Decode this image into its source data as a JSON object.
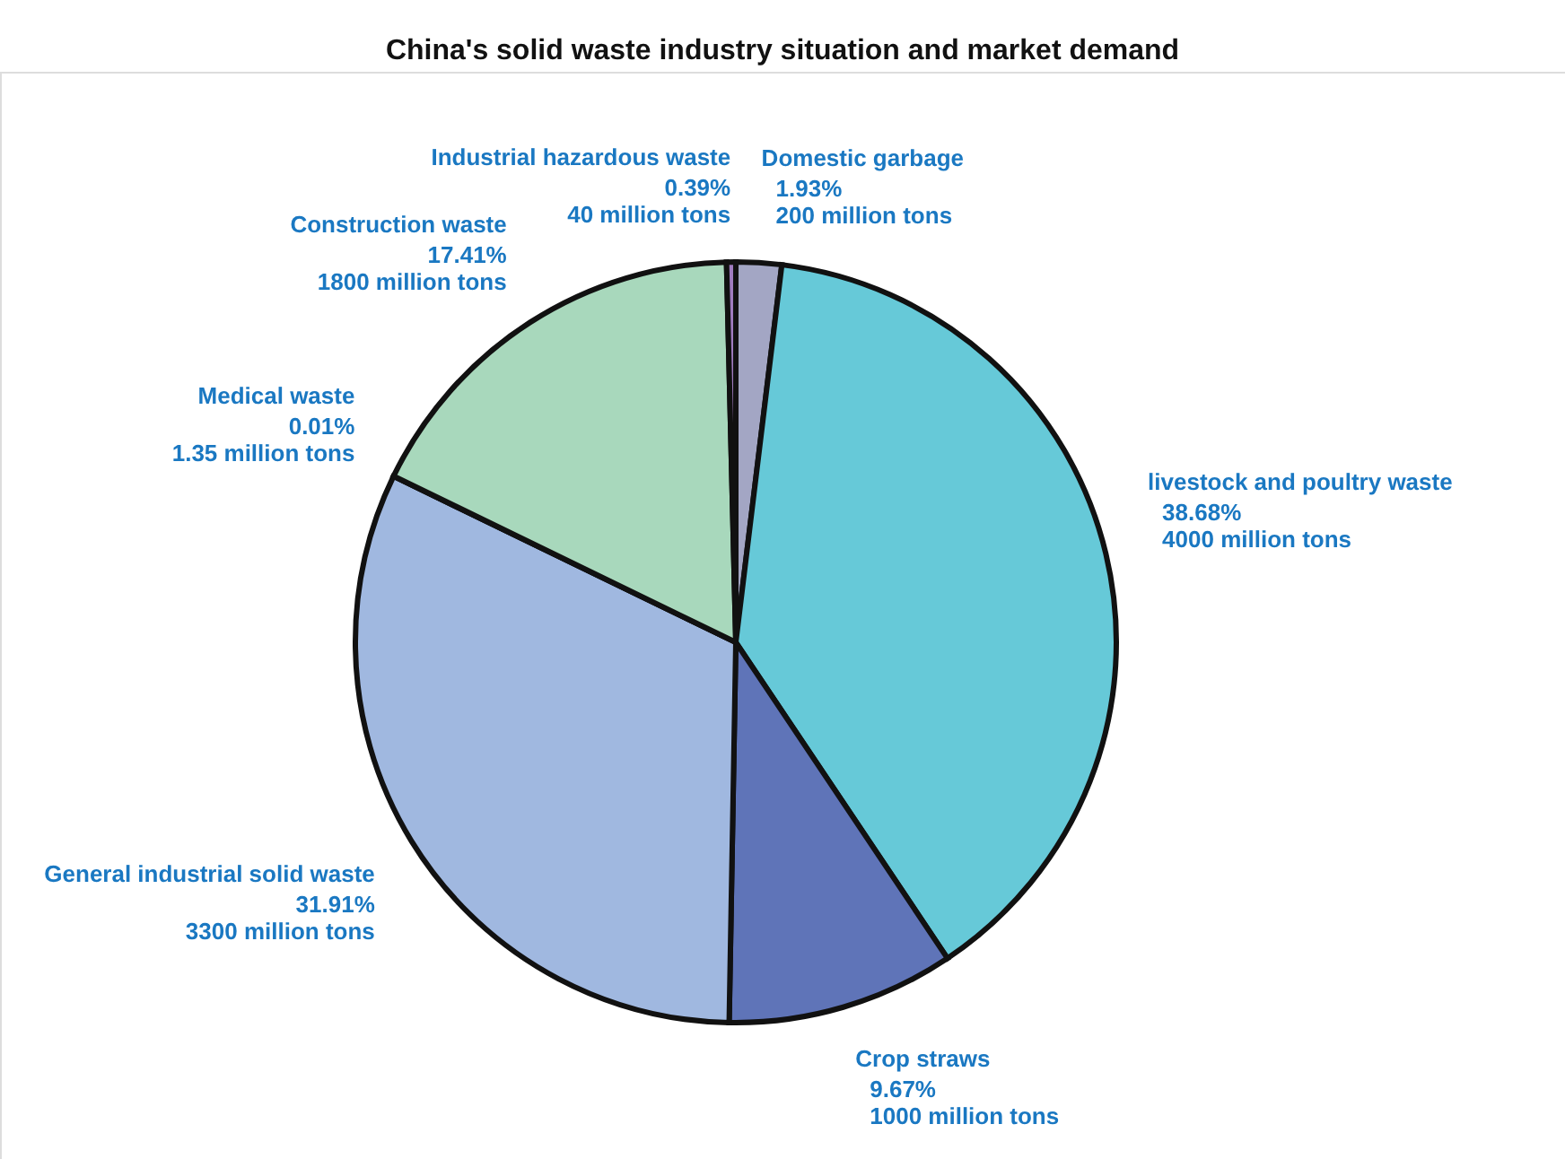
{
  "chart_data": {
    "type": "pie",
    "title": "China's solid waste industry situation and market demand",
    "categories": [
      "Domestic garbage",
      "livestock and poultry waste",
      "Crop straws",
      "General industrial solid waste",
      "Medical waste",
      "Construction waste",
      "Industrial hazardous waste"
    ],
    "values": [
      1.93,
      38.68,
      9.67,
      31.91,
      0.01,
      17.41,
      0.39
    ],
    "value_labels": [
      "1.93%\n200 million tons",
      "38.68%\n4000 million tons",
      "9.67%\n1000 million tons",
      "31.91%\n3300 million tons",
      "0.01%\n1.35 million tons",
      "17.41%\n1800 million tons",
      "0.39%\n40 million tons"
    ],
    "colors": [
      "#a3a6c4",
      "#66c9d8",
      "#5f74b8",
      "#a0b8e0",
      "#d8c8e8",
      "#a8d8bc",
      "#a07cc0"
    ]
  }
}
